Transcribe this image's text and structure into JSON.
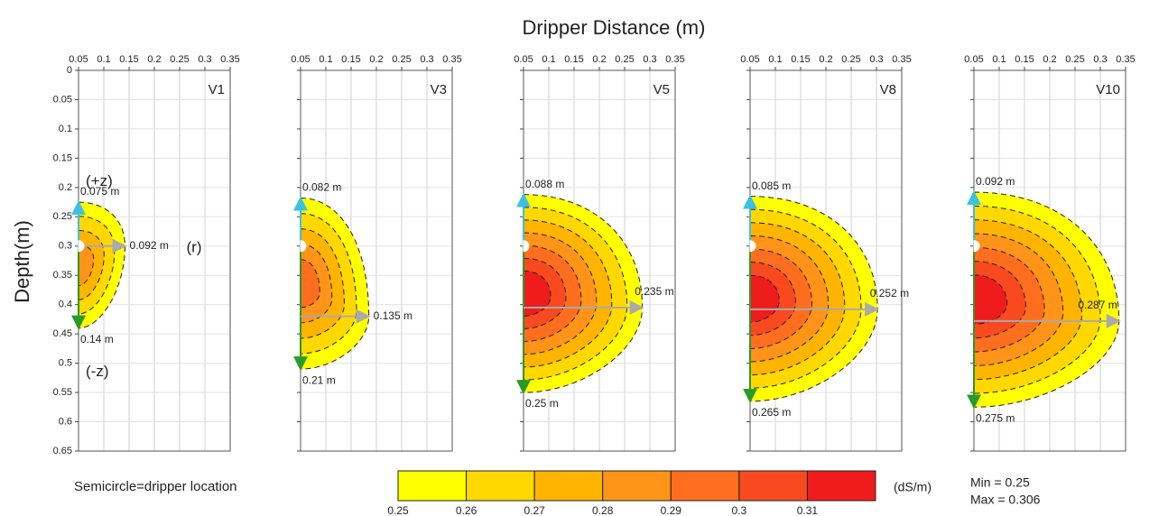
{
  "title": "Dripper Distance (m)",
  "y_label": "Depth(m)",
  "note": "Semicircle=dripper location",
  "chart_data": [
    {
      "type": "contour",
      "title": "V1",
      "xlim": [
        0.05,
        0.35
      ],
      "xticks": [
        0.05,
        0.1,
        0.15,
        0.2,
        0.25,
        0.3,
        0.35
      ],
      "ylim": [
        0,
        0.65
      ],
      "yticks": [
        0,
        0.05,
        0.1,
        0.15,
        0.2,
        0.25,
        0.3,
        0.35,
        0.4,
        0.45,
        0.5,
        0.55,
        0.6,
        0.65
      ],
      "grid": true,
      "dripper_depth": 0.3,
      "top": 0.075,
      "bottom": 0.14,
      "radius": 0.092,
      "radius_depth": 0.3,
      "value_labels": {
        "top": "0.075 m",
        "bottom": "0.14 m",
        "radius": "0.092 m"
      },
      "annotations": [
        "(+z)",
        "(-z)",
        "(r)"
      ]
    },
    {
      "type": "contour",
      "title": "V3",
      "xlim": [
        0.05,
        0.35
      ],
      "xticks": [
        0.05,
        0.1,
        0.15,
        0.2,
        0.25,
        0.3,
        0.35
      ],
      "ylim": [
        0,
        0.65
      ],
      "grid": true,
      "dripper_depth": 0.3,
      "top": 0.082,
      "bottom": 0.21,
      "radius": 0.135,
      "radius_depth": 0.42,
      "value_labels": {
        "top": "0.082 m",
        "bottom": "0.21 m",
        "radius": "0.135 m"
      }
    },
    {
      "type": "contour",
      "title": "V5",
      "xlim": [
        0.05,
        0.35
      ],
      "xticks": [
        0.05,
        0.1,
        0.15,
        0.2,
        0.25,
        0.3,
        0.35
      ],
      "ylim": [
        0,
        0.65
      ],
      "grid": true,
      "dripper_depth": 0.3,
      "top": 0.088,
      "bottom": 0.25,
      "radius": 0.235,
      "radius_depth": 0.405,
      "value_labels": {
        "top": "0.088 m",
        "bottom": "0.25 m",
        "radius": "0.235 m"
      }
    },
    {
      "type": "contour",
      "title": "V8",
      "xlim": [
        0.05,
        0.35
      ],
      "xticks": [
        0.05,
        0.1,
        0.15,
        0.2,
        0.25,
        0.3,
        0.35
      ],
      "ylim": [
        0,
        0.65
      ],
      "grid": true,
      "dripper_depth": 0.3,
      "top": 0.085,
      "bottom": 0.265,
      "radius": 0.252,
      "radius_depth": 0.408,
      "value_labels": {
        "top": "0.085 m",
        "bottom": "0.265 m",
        "radius": "0.252 m"
      }
    },
    {
      "type": "contour",
      "title": "V10",
      "xlim": [
        0.05,
        0.35
      ],
      "xticks": [
        0.05,
        0.1,
        0.15,
        0.2,
        0.25,
        0.3,
        0.35
      ],
      "ylim": [
        0,
        0.65
      ],
      "grid": true,
      "dripper_depth": 0.3,
      "top": 0.092,
      "bottom": 0.275,
      "radius": 0.287,
      "radius_depth": 0.428,
      "value_labels": {
        "top": "0.092 m",
        "bottom": "0.275 m",
        "radius": "0.287 m"
      }
    }
  ],
  "colorbar": {
    "unit": "(dS/m)",
    "clim": [
      0.25,
      0.32
    ],
    "ticks": [
      0.25,
      0.26,
      0.27,
      0.28,
      0.29,
      0.3,
      0.31
    ],
    "colors": [
      "#ffff00",
      "#ffd800",
      "#ffb400",
      "#ff9418",
      "#ff6e1e",
      "#f84a1e",
      "#ee1c1c"
    ]
  },
  "stats": [
    "Min = 0.25",
    "Max = 0.306"
  ]
}
